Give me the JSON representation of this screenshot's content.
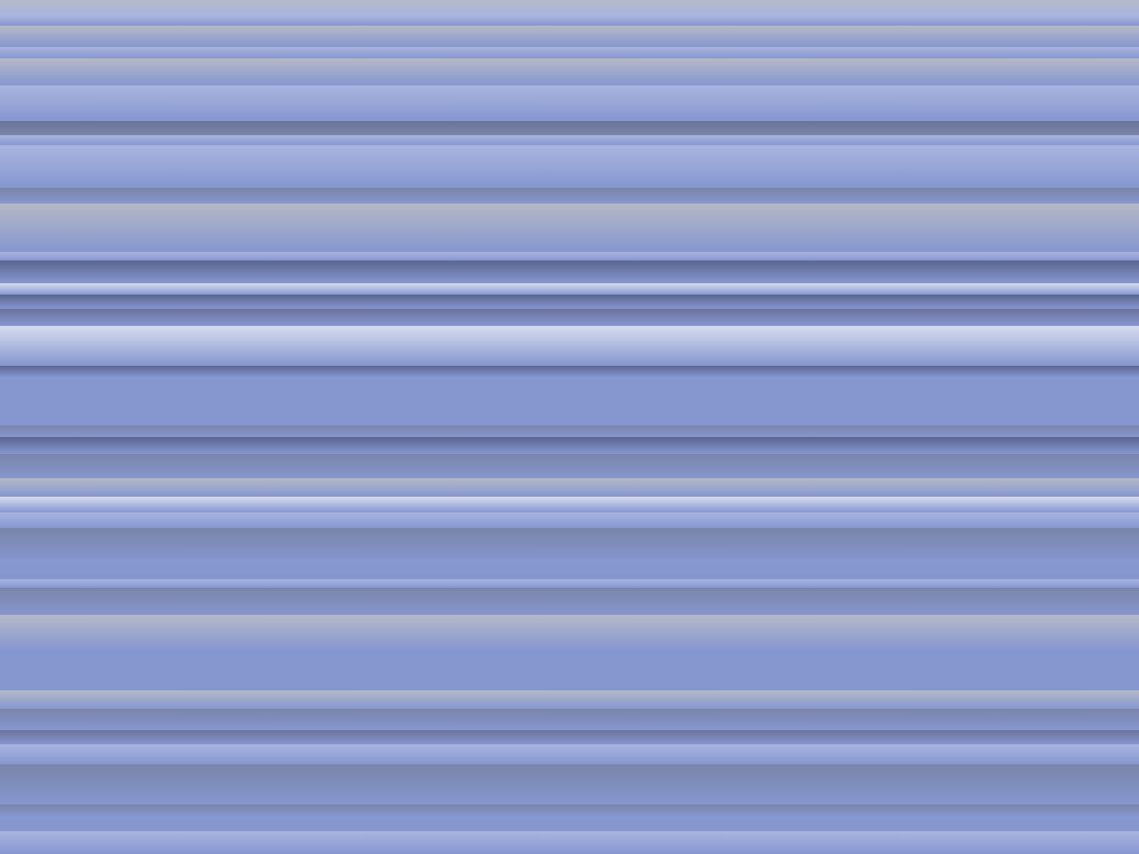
{
  "desktop": {
    "wallpaper": {
      "style": "horizontal-stripes",
      "base_color": "#8395cc",
      "palette": {
        "periwinkle": "#8696cf",
        "light_periwinkle": "#a9b5df",
        "pale_lavender": "#d6dcee",
        "silver_grey": "#b5b9c6",
        "steel_grey": "#7a85a8",
        "slate_dark": "#5b668f",
        "slate_shadow": "#6a739a"
      }
    }
  }
}
